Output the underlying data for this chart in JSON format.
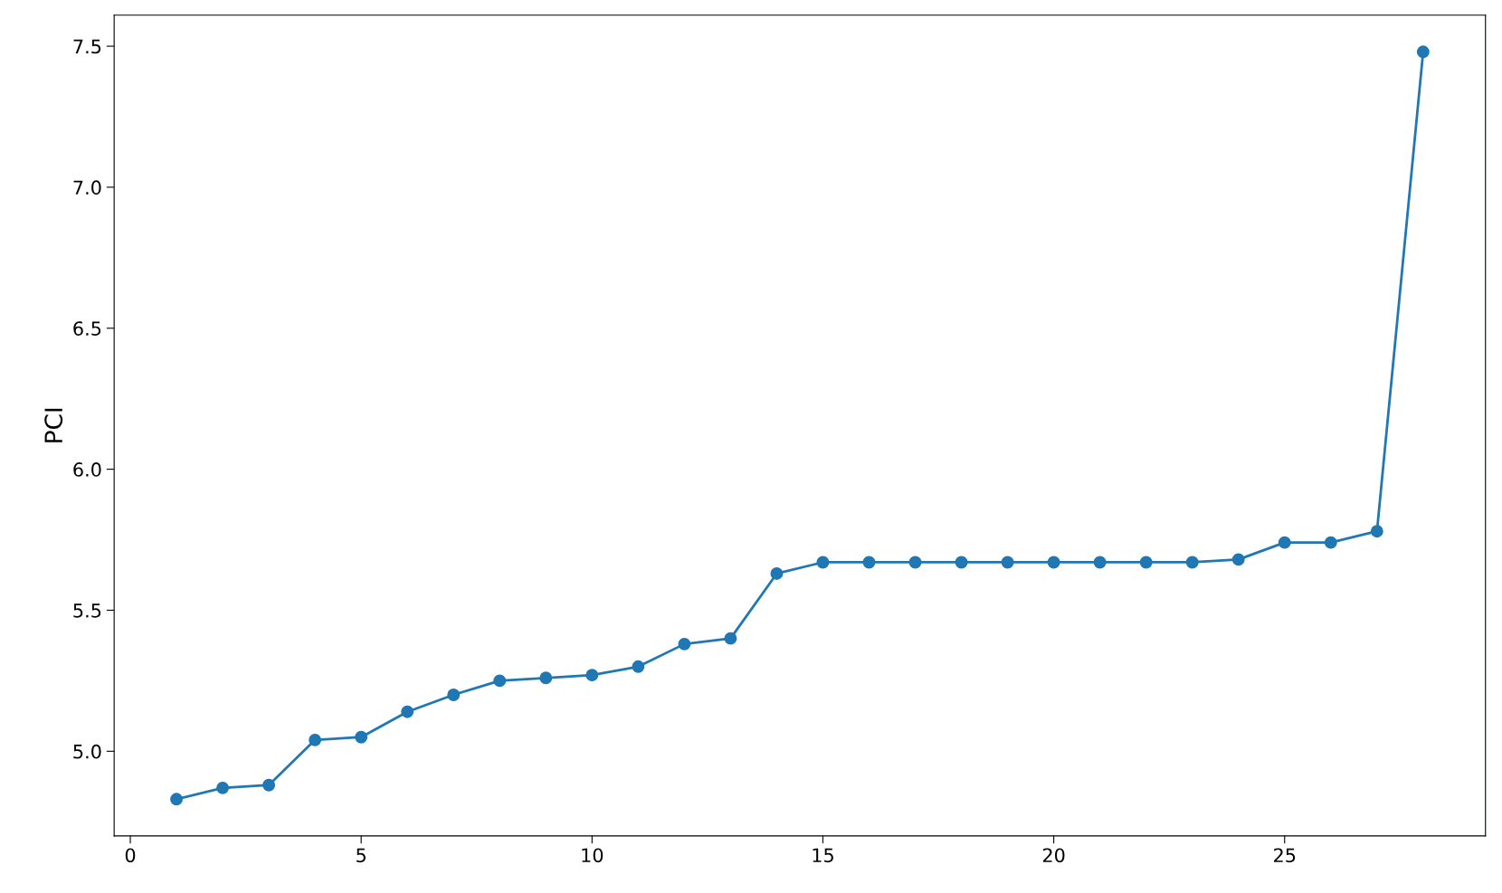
{
  "chart_data": {
    "type": "line",
    "ylabel": "PCI",
    "x": [
      1,
      2,
      3,
      4,
      5,
      6,
      7,
      8,
      9,
      10,
      11,
      12,
      13,
      14,
      15,
      16,
      17,
      18,
      19,
      20,
      21,
      22,
      23,
      24,
      25,
      26,
      27,
      28
    ],
    "series": [
      {
        "color": "#1f77b4",
        "values": [
          4.83,
          4.87,
          4.88,
          5.04,
          5.05,
          5.14,
          5.2,
          5.25,
          5.26,
          5.27,
          5.3,
          5.38,
          5.4,
          5.63,
          5.67,
          5.67,
          5.67,
          5.67,
          5.67,
          5.67,
          5.67,
          5.67,
          5.67,
          5.68,
          5.74,
          5.74,
          5.78,
          7.48
        ]
      }
    ],
    "xlim": [
      -0.35,
      29.35
    ],
    "xticks": [
      0,
      5,
      10,
      15,
      20,
      25
    ],
    "ylim": [
      4.7,
      7.61
    ],
    "yticks": [
      {
        "value": 5,
        "label": "5.0"
      },
      5.5,
      {
        "value": 6,
        "label": "6.0"
      },
      6.5,
      {
        "value": 7,
        "label": "7.0"
      },
      7.5
    ],
    "marker": "circle",
    "line_style": "solid",
    "grid": false,
    "legend": false
  }
}
